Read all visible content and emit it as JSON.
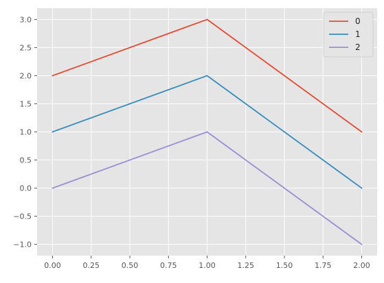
{
  "chart_data": {
    "type": "line",
    "x": [
      0,
      1,
      2
    ],
    "series": [
      {
        "name": "0",
        "values": [
          2,
          3,
          1
        ],
        "color": "#E24A33"
      },
      {
        "name": "1",
        "values": [
          1,
          2,
          0
        ],
        "color": "#348ABD"
      },
      {
        "name": "2",
        "values": [
          0,
          1,
          -1
        ],
        "color": "#988ED5"
      }
    ],
    "title": "",
    "xlabel": "",
    "ylabel": "",
    "xlim": [
      -0.1,
      2.1
    ],
    "ylim": [
      -1.2,
      3.2
    ],
    "x_ticks": [
      "0.00",
      "0.25",
      "0.50",
      "0.75",
      "1.00",
      "1.25",
      "1.50",
      "1.75",
      "2.00"
    ],
    "y_ticks": [
      "−1.0",
      "−0.5",
      "0.0",
      "0.5",
      "1.0",
      "1.5",
      "2.0",
      "2.5",
      "3.0"
    ],
    "grid": true,
    "legend_position": "top-right",
    "style": {
      "background": "#E5E5E5",
      "grid_color": "#FFFFFF"
    }
  }
}
